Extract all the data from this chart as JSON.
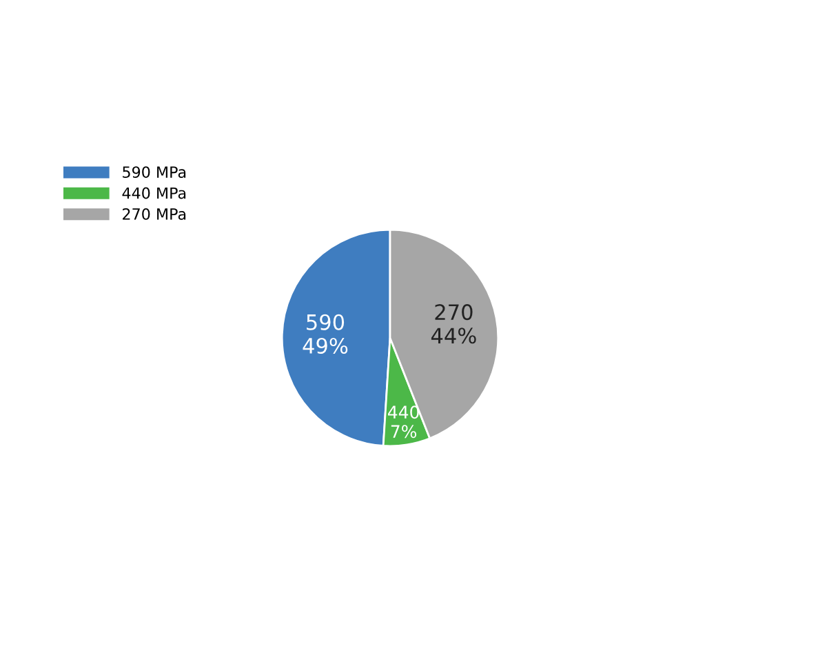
{
  "chart_data": {
    "type": "pie",
    "categories": [
      "590 MPa",
      "440 MPa",
      "270 MPa"
    ],
    "values": [
      49,
      7,
      44
    ],
    "colors": [
      "#3f7dc0",
      "#4cb848",
      "#a6a6a6"
    ],
    "value_labels": [
      "590\n49%",
      "440\n7%",
      "270\n44%"
    ],
    "legend": "top left"
  }
}
